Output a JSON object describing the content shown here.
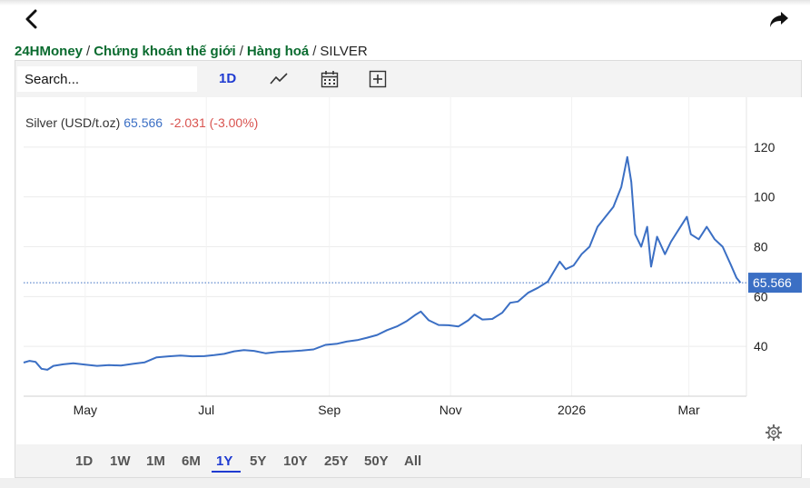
{
  "breadcrumb": {
    "items": [
      "24HMoney",
      "Chứng khoán thế giới",
      "Hàng hoá"
    ],
    "current": "SILVER"
  },
  "search": {
    "placeholder": "Search..."
  },
  "toolbar": {
    "interval": "1D",
    "icons": [
      "line-chart-icon",
      "calendar-icon",
      "add-compare-icon"
    ]
  },
  "legend": {
    "name": "Silver (USD/t.oz)",
    "last": "65.566",
    "change": "-2.031 (-3.00%)"
  },
  "ranges": {
    "items": [
      "1D",
      "1W",
      "1M",
      "6M",
      "1Y",
      "5Y",
      "10Y",
      "25Y",
      "50Y",
      "All"
    ],
    "active": "1Y"
  },
  "colors": {
    "line": "#3b6fc4",
    "accent": "#1f3bd1",
    "negative": "#d9534f",
    "brand": "#0a6b2f"
  },
  "chart_data": {
    "type": "line",
    "title": "Silver (USD/t.oz)",
    "xlabel": "",
    "ylabel": "",
    "x_tick_labels": [
      "May",
      "Jul",
      "Sep",
      "Nov",
      "2026",
      "Mar"
    ],
    "x_ticks": [
      "2025-05-01",
      "2025-07-01",
      "2025-09-01",
      "2025-11-01",
      "2026-01-01",
      "2026-03-01"
    ],
    "x_range": [
      "2025-03-31",
      "2026-03-30"
    ],
    "y_ticks": [
      40,
      60,
      80,
      100,
      120
    ],
    "ylim": [
      20,
      140
    ],
    "grid": true,
    "last_value_label": "65.566",
    "series": [
      {
        "name": "Silver",
        "points": [
          [
            "2025-03-31",
            33.5
          ],
          [
            "2025-04-03",
            34.2
          ],
          [
            "2025-04-06",
            33.8
          ],
          [
            "2025-04-09",
            31.0
          ],
          [
            "2025-04-12",
            30.6
          ],
          [
            "2025-04-15",
            32.2
          ],
          [
            "2025-04-20",
            32.8
          ],
          [
            "2025-04-25",
            33.2
          ],
          [
            "2025-05-01",
            32.7
          ],
          [
            "2025-05-07",
            32.2
          ],
          [
            "2025-05-13",
            32.5
          ],
          [
            "2025-05-19",
            32.3
          ],
          [
            "2025-05-25",
            33.0
          ],
          [
            "2025-05-31",
            33.6
          ],
          [
            "2025-06-06",
            35.6
          ],
          [
            "2025-06-12",
            36.0
          ],
          [
            "2025-06-18",
            36.3
          ],
          [
            "2025-06-24",
            36.0
          ],
          [
            "2025-06-30",
            36.1
          ],
          [
            "2025-07-05",
            36.5
          ],
          [
            "2025-07-10",
            37.0
          ],
          [
            "2025-07-15",
            38.0
          ],
          [
            "2025-07-20",
            38.5
          ],
          [
            "2025-07-25",
            38.2
          ],
          [
            "2025-07-31",
            37.2
          ],
          [
            "2025-08-06",
            37.8
          ],
          [
            "2025-08-12",
            38.0
          ],
          [
            "2025-08-18",
            38.3
          ],
          [
            "2025-08-24",
            38.8
          ],
          [
            "2025-08-30",
            40.6
          ],
          [
            "2025-09-05",
            41.1
          ],
          [
            "2025-09-10",
            42.0
          ],
          [
            "2025-09-15",
            42.5
          ],
          [
            "2025-09-20",
            43.5
          ],
          [
            "2025-09-25",
            44.6
          ],
          [
            "2025-09-30",
            46.5
          ],
          [
            "2025-10-05",
            48.0
          ],
          [
            "2025-10-10",
            50.2
          ],
          [
            "2025-10-14",
            52.5
          ],
          [
            "2025-10-17",
            54.0
          ],
          [
            "2025-10-21",
            50.5
          ],
          [
            "2025-10-26",
            48.6
          ],
          [
            "2025-10-31",
            48.5
          ],
          [
            "2025-11-05",
            48.0
          ],
          [
            "2025-11-10",
            50.5
          ],
          [
            "2025-11-13",
            52.8
          ],
          [
            "2025-11-17",
            50.8
          ],
          [
            "2025-11-22",
            51.0
          ],
          [
            "2025-11-27",
            53.5
          ],
          [
            "2025-12-01",
            57.5
          ],
          [
            "2025-12-05",
            58.0
          ],
          [
            "2025-12-10",
            61.5
          ],
          [
            "2025-12-15",
            63.5
          ],
          [
            "2025-12-20",
            66.0
          ],
          [
            "2025-12-26",
            74.0
          ],
          [
            "2025-12-29",
            71.0
          ],
          [
            "2026-01-02",
            72.5
          ],
          [
            "2026-01-06",
            77.0
          ],
          [
            "2026-01-10",
            80.0
          ],
          [
            "2026-01-14",
            88.0
          ],
          [
            "2026-01-18",
            92.0
          ],
          [
            "2026-01-22",
            96.0
          ],
          [
            "2026-01-26",
            104.0
          ],
          [
            "2026-01-29",
            116.0
          ],
          [
            "2026-01-31",
            106.0
          ],
          [
            "2026-02-02",
            85.0
          ],
          [
            "2026-02-05",
            80.0
          ],
          [
            "2026-02-08",
            88.0
          ],
          [
            "2026-02-10",
            72.0
          ],
          [
            "2026-02-13",
            84.0
          ],
          [
            "2026-02-17",
            77.0
          ],
          [
            "2026-02-20",
            82.0
          ],
          [
            "2026-02-24",
            87.0
          ],
          [
            "2026-02-28",
            92.0
          ],
          [
            "2026-03-02",
            85.0
          ],
          [
            "2026-03-06",
            83.0
          ],
          [
            "2026-03-10",
            88.0
          ],
          [
            "2026-03-14",
            83.0
          ],
          [
            "2026-03-18",
            80.0
          ],
          [
            "2026-03-22",
            73.0
          ],
          [
            "2026-03-25",
            67.5
          ],
          [
            "2026-03-27",
            65.566
          ]
        ]
      }
    ]
  }
}
